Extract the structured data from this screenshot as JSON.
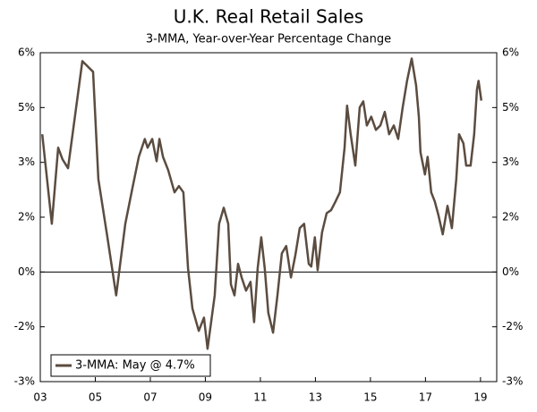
{
  "chart_data": {
    "type": "line",
    "title": "U.K. Real Retail Sales",
    "subtitle": "3-MMA, Year-over-Year Percentage Change",
    "x": [
      2003.07,
      2003.42,
      2003.65,
      2003.81,
      2004.01,
      2004.53,
      2004.92,
      2005.11,
      2005.44,
      2005.76,
      2006.09,
      2006.35,
      2006.58,
      2006.8,
      2006.9,
      2007.07,
      2007.23,
      2007.33,
      2007.46,
      2007.65,
      2007.88,
      2008.04,
      2008.2,
      2008.37,
      2008.53,
      2008.76,
      2008.95,
      2009.08,
      2009.34,
      2009.5,
      2009.67,
      2009.83,
      2009.93,
      2010.06,
      2010.19,
      2010.32,
      2010.48,
      2010.64,
      2010.77,
      2010.9,
      2011.03,
      2011.16,
      2011.29,
      2011.46,
      2011.62,
      2011.78,
      2011.94,
      2012.11,
      2012.27,
      2012.43,
      2012.59,
      2012.76,
      2012.85,
      2012.98,
      2013.08,
      2013.24,
      2013.41,
      2013.57,
      2013.73,
      2013.89,
      2014.06,
      2014.15,
      2014.28,
      2014.45,
      2014.61,
      2014.74,
      2014.87,
      2015.03,
      2015.2,
      2015.36,
      2015.52,
      2015.68,
      2015.85,
      2016.01,
      2016.17,
      2016.33,
      2016.5,
      2016.66,
      2016.76,
      2016.82,
      2016.98,
      2017.08,
      2017.21,
      2017.34,
      2017.47,
      2017.63,
      2017.8,
      2017.96,
      2018.12,
      2018.22,
      2018.38,
      2018.48,
      2018.64,
      2018.77,
      2018.87,
      2018.93,
      2019.03
    ],
    "series": [
      {
        "name": "3-MMA: May @ 4.7%",
        "color": "#5b4c40",
        "values": [
          3.77,
          1.32,
          3.4,
          3.08,
          2.84,
          5.77,
          5.48,
          2.54,
          0.95,
          -0.64,
          1.32,
          2.3,
          3.15,
          3.64,
          3.4,
          3.64,
          3.03,
          3.64,
          3.15,
          2.79,
          2.18,
          2.35,
          2.18,
          0.1,
          -1.0,
          -1.61,
          -1.25,
          -2.1,
          -0.64,
          1.32,
          1.76,
          1.32,
          -0.34,
          -0.64,
          0.22,
          -0.15,
          -0.51,
          -0.27,
          -1.37,
          0.1,
          0.95,
          0.1,
          -1.12,
          -1.66,
          -0.64,
          0.51,
          0.71,
          -0.15,
          0.46,
          1.2,
          1.32,
          0.22,
          0.15,
          0.95,
          0.05,
          1.08,
          1.61,
          1.69,
          1.93,
          2.18,
          3.4,
          4.55,
          3.77,
          2.91,
          4.5,
          4.67,
          4.01,
          4.25,
          3.89,
          4.01,
          4.38,
          3.77,
          4.01,
          3.64,
          4.5,
          5.23,
          5.84,
          5.11,
          4.25,
          3.28,
          2.67,
          3.15,
          2.18,
          1.93,
          1.56,
          1.03,
          1.81,
          1.2,
          2.54,
          3.77,
          3.52,
          2.91,
          2.91,
          3.77,
          4.99,
          5.23,
          4.69
        ]
      }
    ],
    "xlim": [
      2003,
      2019.59
    ],
    "xticks": [
      {
        "value": 2003,
        "label": "03"
      },
      {
        "value": 2005,
        "label": "05"
      },
      {
        "value": 2007,
        "label": "07"
      },
      {
        "value": 2009,
        "label": "09"
      },
      {
        "value": 2011,
        "label": "11"
      },
      {
        "value": 2013,
        "label": "13"
      },
      {
        "value": 2015,
        "label": "15"
      },
      {
        "value": 2017,
        "label": "17"
      },
      {
        "value": 2019,
        "label": "19"
      }
    ],
    "ylim": [
      -3,
      6
    ],
    "yticks": [
      {
        "value": -3,
        "label": "-3%"
      },
      {
        "value": -1.5,
        "label": "-2%"
      },
      {
        "value": 0,
        "label": "0%"
      },
      {
        "value": 1.5,
        "label": "2%"
      },
      {
        "value": 3,
        "label": "3%"
      },
      {
        "value": 4.5,
        "label": "5%"
      },
      {
        "value": 6,
        "label": "6%"
      }
    ],
    "zero_line": true,
    "legend": "bottom-left"
  }
}
